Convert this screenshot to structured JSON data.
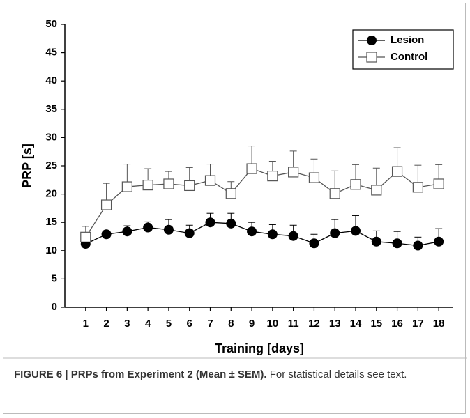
{
  "chart_data": {
    "type": "line",
    "xlabel": "Training [days]",
    "ylabel": "PRP [s]",
    "x": [
      1,
      2,
      3,
      4,
      5,
      6,
      7,
      8,
      9,
      10,
      11,
      12,
      13,
      14,
      15,
      16,
      17,
      18
    ],
    "xlim": [
      0,
      18.7
    ],
    "xticks": [
      1,
      2,
      3,
      4,
      5,
      6,
      7,
      8,
      9,
      10,
      11,
      12,
      13,
      14,
      15,
      16,
      17,
      18
    ],
    "ylim": [
      0,
      50
    ],
    "yticks": [
      0,
      5,
      10,
      15,
      20,
      25,
      30,
      35,
      40,
      45,
      50
    ],
    "legend": "top-right",
    "series": [
      {
        "name": "Lesion",
        "color": "#000000",
        "marker": "circle",
        "values": [
          11.2,
          12.9,
          13.4,
          14.1,
          13.7,
          13.1,
          15.0,
          14.8,
          13.4,
          12.9,
          12.6,
          11.3,
          13.1,
          13.5,
          11.6,
          11.3,
          10.9,
          11.6
        ],
        "errors": [
          0.5,
          0.6,
          1.0,
          1.0,
          1.8,
          1.4,
          1.6,
          1.8,
          1.6,
          1.7,
          1.9,
          1.6,
          2.4,
          2.7,
          1.9,
          2.1,
          1.5,
          2.3
        ]
      },
      {
        "name": "Control",
        "color": "#555555",
        "marker": "square",
        "values": [
          12.4,
          18.1,
          21.3,
          21.6,
          21.8,
          21.5,
          22.4,
          20.1,
          24.5,
          23.2,
          23.9,
          22.9,
          20.1,
          21.7,
          20.7,
          24.0,
          21.2,
          21.8
        ],
        "errors": [
          1.9,
          3.8,
          4.0,
          2.9,
          2.2,
          3.2,
          2.9,
          2.1,
          4.0,
          2.6,
          3.7,
          3.3,
          4.0,
          3.5,
          3.9,
          4.2,
          3.9,
          3.4
        ]
      }
    ]
  },
  "caption": {
    "label": "FIGURE 6 | PRPs from Experiment 2 (Mean ± SEM).",
    "text": "For statistical details see text."
  }
}
